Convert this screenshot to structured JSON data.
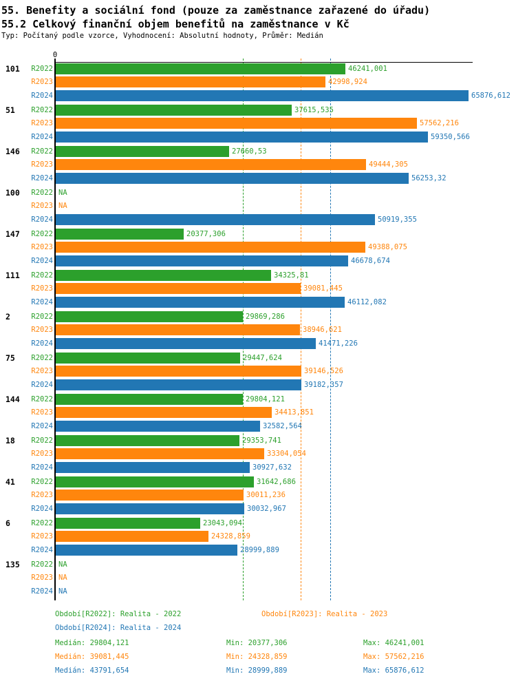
{
  "title": "55. Benefity a sociální fond (pouze za zaměstnance zařazené do úřadu)",
  "subtitle": "55.2 Celkový finanční objem benefitů na zaměstnance v Kč",
  "meta": "Typ: Počítaný podle vzorce, Vyhodnocení: Absolutní hodnoty, Průměr: Medián",
  "colors": {
    "r2022": "#2CA02C",
    "r2023": "#FF860D",
    "r2024": "#2277B4",
    "axis": "#000000"
  },
  "chart_data": {
    "type": "bar",
    "orientation": "horizontal",
    "axis_origin_label": "0",
    "xlim": [
      0,
      66500
    ],
    "grid": "off",
    "series_labels": [
      "R2022",
      "R2023",
      "R2024"
    ],
    "series_keys": [
      "r2022",
      "r2023",
      "r2024"
    ],
    "na_text": "NA",
    "groups": [
      {
        "id": "101",
        "values": [
          46241.001,
          42998.924,
          65876.612
        ],
        "display": [
          "46241,001",
          "42998,924",
          "65876,612"
        ]
      },
      {
        "id": "51",
        "values": [
          37615.535,
          57562.216,
          59350.566
        ],
        "display": [
          "37615,535",
          "57562,216",
          "59350,566"
        ]
      },
      {
        "id": "146",
        "values": [
          27660.53,
          49444.305,
          56253.32
        ],
        "display": [
          "27660,53",
          "49444,305",
          "56253,32"
        ]
      },
      {
        "id": "100",
        "values": [
          null,
          null,
          50919.355
        ],
        "display": [
          "NA",
          "NA",
          "50919,355"
        ]
      },
      {
        "id": "147",
        "values": [
          20377.306,
          49388.075,
          46678.674
        ],
        "display": [
          "20377,306",
          "49388,075",
          "46678,674"
        ]
      },
      {
        "id": "111",
        "values": [
          34325.81,
          39081.445,
          46112.082
        ],
        "display": [
          "34325,81",
          "39081,445",
          "46112,082"
        ]
      },
      {
        "id": "2",
        "values": [
          29869.286,
          38946.621,
          41471.226
        ],
        "display": [
          "29869,286",
          "38946,621",
          "41471,226"
        ]
      },
      {
        "id": "75",
        "values": [
          29447.624,
          39146.526,
          39182.357
        ],
        "display": [
          "29447,624",
          "39146,526",
          "39182,357"
        ]
      },
      {
        "id": "144",
        "values": [
          29804.121,
          34413.851,
          32582.564
        ],
        "display": [
          "29804,121",
          "34413,851",
          "32582,564"
        ]
      },
      {
        "id": "18",
        "values": [
          29353.741,
          33304.054,
          30927.632
        ],
        "display": [
          "29353,741",
          "33304,054",
          "30927,632"
        ]
      },
      {
        "id": "41",
        "values": [
          31642.686,
          30011.236,
          30032.967
        ],
        "display": [
          "31642,686",
          "30011,236",
          "30032,967"
        ]
      },
      {
        "id": "6",
        "values": [
          23043.094,
          24328.859,
          28999.889
        ],
        "display": [
          "23043,094",
          "24328,859",
          "28999,889"
        ]
      },
      {
        "id": "135",
        "values": [
          null,
          null,
          null
        ],
        "display": [
          "NA",
          "NA",
          "NA"
        ]
      }
    ],
    "median_lines": [
      {
        "series": "r2022",
        "value": 29804.121
      },
      {
        "series": "r2023",
        "value": 39081.445
      },
      {
        "series": "r2024",
        "value": 43791.654
      }
    ]
  },
  "legend": {
    "items": [
      {
        "label": "Období[R2022]: Realita - 2022",
        "series": "r2022"
      },
      {
        "label": "Období[R2023]: Realita - 2023",
        "series": "r2023"
      },
      {
        "label": "Období[R2024]: Realita - 2024",
        "series": "r2024"
      }
    ]
  },
  "stats": {
    "rows": [
      {
        "series": "r2022",
        "median": "Medián: 29804,121",
        "min": "Min: 20377,306",
        "max": "Max: 46241,001"
      },
      {
        "series": "r2023",
        "median": "Medián: 39081,445",
        "min": "Min: 24328,859",
        "max": "Max: 57562,216"
      },
      {
        "series": "r2024",
        "median": "Medián: 43791,654",
        "min": "Min: 28999,889",
        "max": "Max: 65876,612"
      }
    ]
  }
}
